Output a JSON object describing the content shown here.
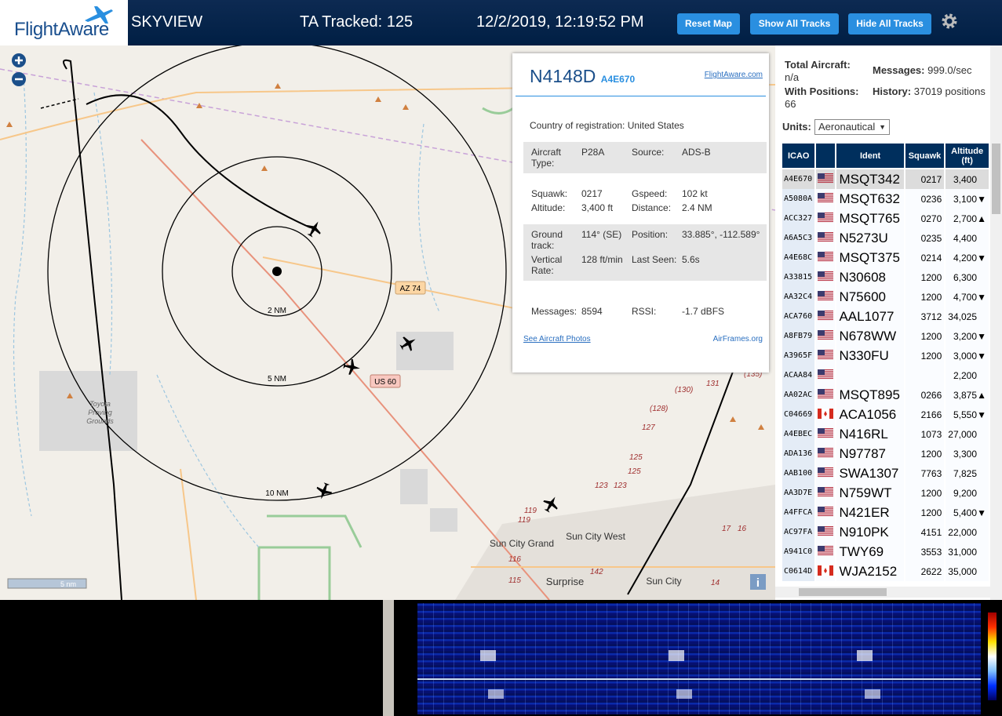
{
  "header": {
    "logo": "FlightAware",
    "site": "SKYVIEW",
    "tracked": "TA Tracked: 125",
    "datetime": "12/2/2019, 12:19:52 PM",
    "buttons": [
      "Reset Map",
      "Show All Tracks",
      "Hide All Tracks"
    ]
  },
  "map": {
    "rings": [
      "2 NM",
      "5 NM",
      "10 NM"
    ],
    "roads": [
      "AZ 74",
      "US 60"
    ],
    "places": [
      "Sun City Grand",
      "Sun City West",
      "Surprise",
      "Sun City",
      "Toyota Proving Grounds"
    ],
    "route_numbers": [
      "(130)",
      "131",
      "(128)",
      "127",
      "125",
      "125",
      "123",
      "123",
      "119",
      "119",
      "116",
      "115",
      "142",
      "17",
      "16",
      "14",
      "(135)"
    ],
    "scale": "5 nm"
  },
  "popup": {
    "callsign": "N4148D",
    "hex": "A4E670",
    "link": "FlightAware.com",
    "country_label": "Country of registration:",
    "country_value": "United States",
    "sections": [
      [
        {
          "label": "Aircraft Type:",
          "value": "P28A"
        },
        {
          "label": "Source:",
          "value": "ADS-B"
        }
      ],
      [
        {
          "label": "Squawk:",
          "value": "0217"
        },
        {
          "label": "Gspeed:",
          "value": "102 kt"
        },
        {
          "label": "Altitude:",
          "value": "3,400 ft"
        },
        {
          "label": "Distance:",
          "value": "2.4 NM"
        }
      ],
      [
        {
          "label": "Ground track:",
          "value": "114° (SE)"
        },
        {
          "label": "Position:",
          "value": "33.885°, -112.589°"
        },
        {
          "label": "Vertical Rate:",
          "value": "128 ft/min"
        },
        {
          "label": "Last Seen:",
          "value": "5.6s"
        }
      ],
      [
        {
          "label": "Messages:",
          "value": "8594"
        },
        {
          "label": "RSSI:",
          "value": "-1.7 dBFS"
        }
      ]
    ],
    "photos": "See Aircraft Photos",
    "airframes": "AirFrames.org"
  },
  "stats": {
    "total_label": "Total Aircraft:",
    "total_value": "n/a",
    "messages_label": "Messages:",
    "messages_value": "999.0/sec",
    "positions_label": "With Positions:",
    "positions_value": "66",
    "history_label": "History:",
    "history_value": "37019 positions",
    "units_label": "Units:",
    "units_value": "Aeronautical"
  },
  "table": {
    "headers": [
      "ICAO",
      "Ident",
      "Squawk",
      "Altitude (ft)"
    ],
    "rows": [
      {
        "icao": "A4E670",
        "flag": "us",
        "ident": "MSQT342",
        "squawk": "0217",
        "altitude": "3,400"
      },
      {
        "icao": "A5080A",
        "flag": "us",
        "ident": "MSQT632",
        "squawk": "0236",
        "altitude": "3,100",
        "trend": "▼"
      },
      {
        "icao": "ACC327",
        "flag": "us",
        "ident": "MSQT765",
        "squawk": "0270",
        "altitude": "2,700",
        "trend": "▲"
      },
      {
        "icao": "A6A5C3",
        "flag": "us",
        "ident": "N5273U",
        "squawk": "0235",
        "altitude": "4,400"
      },
      {
        "icao": "A4E68C",
        "flag": "us",
        "ident": "MSQT375",
        "squawk": "0214",
        "altitude": "4,200",
        "trend": "▼"
      },
      {
        "icao": "A33815",
        "flag": "us",
        "ident": "N30608",
        "squawk": "1200",
        "altitude": "6,300"
      },
      {
        "icao": "AA32C4",
        "flag": "us",
        "ident": "N75600",
        "squawk": "1200",
        "altitude": "4,700",
        "trend": "▼"
      },
      {
        "icao": "ACA760",
        "flag": "us",
        "ident": "AAL1077",
        "squawk": "3712",
        "altitude": "34,025"
      },
      {
        "icao": "A8FB79",
        "flag": "us",
        "ident": "N678WW",
        "squawk": "1200",
        "altitude": "3,200",
        "trend": "▼"
      },
      {
        "icao": "A3965F",
        "flag": "us",
        "ident": "N330FU",
        "squawk": "1200",
        "altitude": "3,000",
        "trend": "▼"
      },
      {
        "icao": "ACAA84",
        "flag": "us",
        "altitude": "2,200"
      },
      {
        "icao": "AA02AC",
        "flag": "us",
        "ident": "MSQT895",
        "squawk": "0266",
        "altitude": "3,875",
        "trend": "▲"
      },
      {
        "icao": "C04669",
        "flag": "ca",
        "ident": "ACA1056",
        "squawk": "2166",
        "altitude": "5,550",
        "trend": "▼"
      },
      {
        "icao": "A4EBEC",
        "flag": "us",
        "ident": "N416RL",
        "squawk": "1073",
        "altitude": "27,000"
      },
      {
        "icao": "ADA136",
        "flag": "us",
        "ident": "N97787",
        "squawk": "1200",
        "altitude": "3,300"
      },
      {
        "icao": "AAB100",
        "flag": "us",
        "ident": "SWA1307",
        "squawk": "7763",
        "altitude": "7,825"
      },
      {
        "icao": "AA3D7E",
        "flag": "us",
        "ident": "N759WT",
        "squawk": "1200",
        "altitude": "9,200"
      },
      {
        "icao": "A4FFCA",
        "flag": "us",
        "ident": "N421ER",
        "squawk": "1200",
        "altitude": "5,400",
        "trend": "▼"
      },
      {
        "icao": "AC97FA",
        "flag": "us",
        "ident": "N910PK",
        "squawk": "4151",
        "altitude": "22,000"
      },
      {
        "icao": "A941C0",
        "flag": "us",
        "ident": "TWY69",
        "squawk": "3553",
        "altitude": "31,000"
      },
      {
        "icao": "C0614D",
        "flag": "ca",
        "ident": "WJA2152",
        "squawk": "2622",
        "altitude": "35,000"
      }
    ]
  }
}
